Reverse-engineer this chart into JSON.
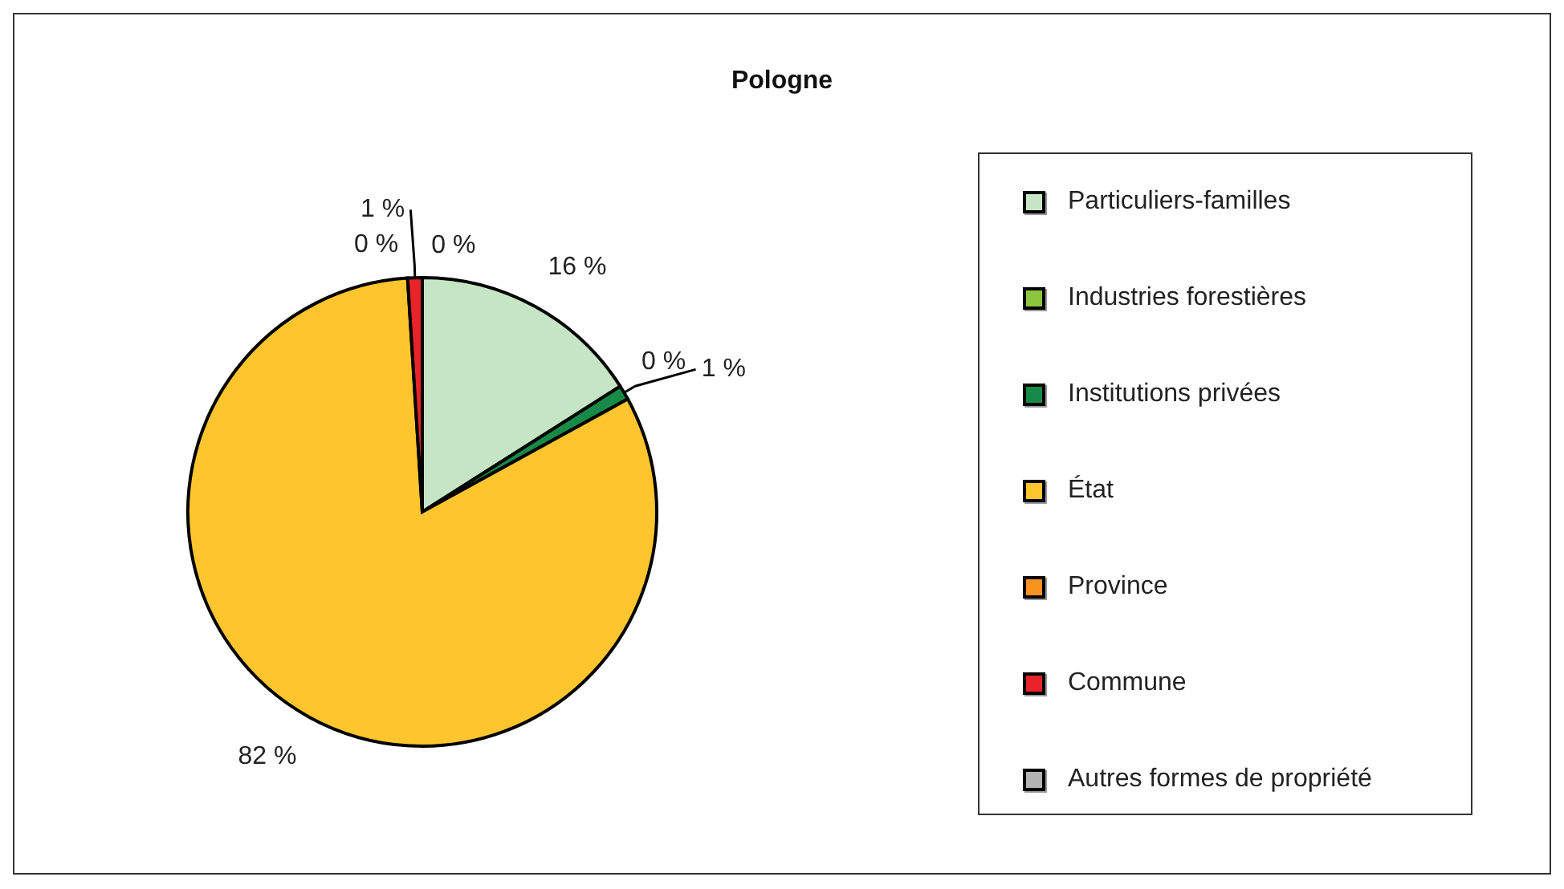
{
  "chart_data": {
    "type": "pie",
    "title": "Pologne",
    "categories": [
      "Particuliers-familles",
      "Industries forestières",
      "Institutions privées",
      "État",
      "Province",
      "Commune",
      "Autres formes de propriété"
    ],
    "values": [
      16,
      0,
      1,
      82,
      0,
      1,
      0
    ],
    "colors": [
      "#c5e5c5",
      "#8cc63f",
      "#178a47",
      "#fec52e",
      "#f7931e",
      "#e8232a",
      "#b3b3b3"
    ],
    "value_labels": [
      "16 %",
      "0 %",
      "1 %",
      "82 %",
      "0 %",
      "1 %",
      "0 %"
    ],
    "legend": "right"
  }
}
